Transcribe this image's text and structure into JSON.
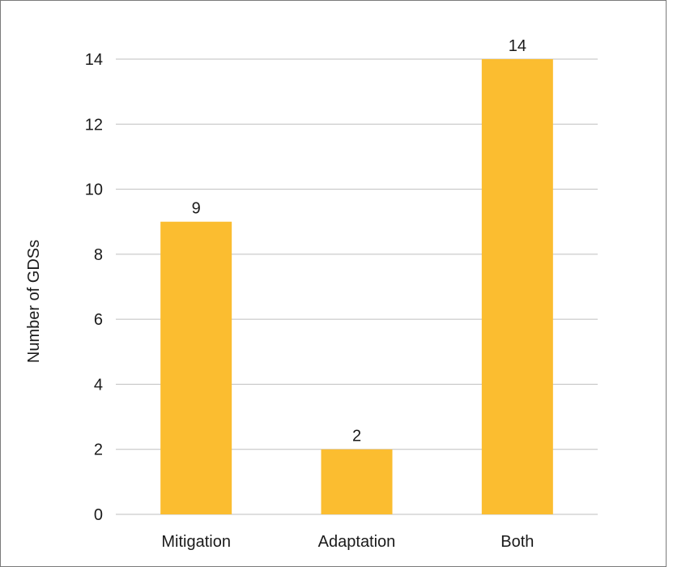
{
  "chart_data": {
    "type": "bar",
    "title": "",
    "xlabel": "",
    "ylabel": "Number of GDSs",
    "categories": [
      "Mitigation",
      "Adaptation",
      "Both"
    ],
    "values": [
      9,
      2,
      14
    ],
    "ylim": [
      0,
      14
    ],
    "yticks": [
      0,
      2,
      4,
      6,
      8,
      10,
      12,
      14
    ],
    "grid": true,
    "legend": "none",
    "bar_color": "#FBBD30",
    "grid_color": "#BFBFBF",
    "data_labels": [
      "9",
      "2",
      "14"
    ]
  }
}
